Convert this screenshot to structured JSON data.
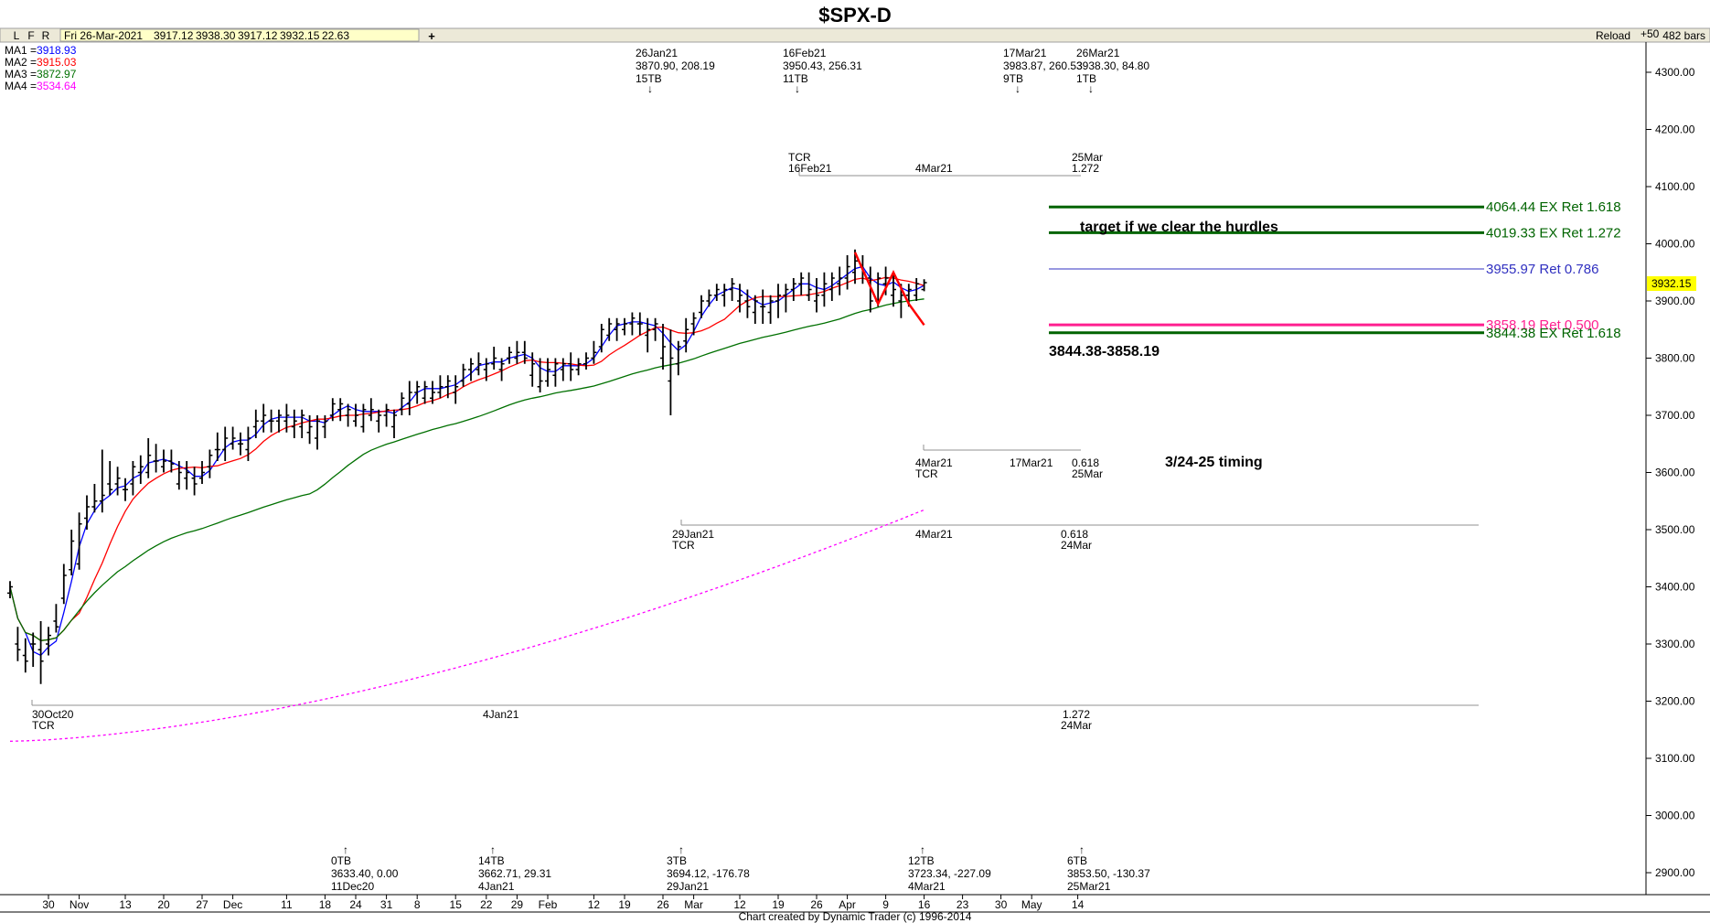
{
  "window": {
    "title": "$SPX-D",
    "toolbar_letters": [
      "L",
      "F",
      "R"
    ],
    "readout": {
      "date": "Fri 26-Mar-2021",
      "open": "3917.12",
      "high": "3938.30",
      "low": "3917.12",
      "close": "3932.15",
      "change": "22.63"
    },
    "add_button": "+",
    "reload": "Reload",
    "zoom": "+50",
    "bars": "482 bars",
    "footer": "Chart created by Dynamic Trader  (c) 1996-2014"
  },
  "colors": {
    "ma1": "#0000ff",
    "ma2": "#ff0000",
    "ma3": "#007000",
    "ma4": "#ff00ff",
    "price": "#000000",
    "target_green": "#006400",
    "pink": "#ff1f8f",
    "blue_line": "#3030c0",
    "drawn_red": "#ff0000"
  },
  "chart_data": {
    "type": "ohlc",
    "symbol": "$SPX-D",
    "y_ticks": [
      "4300.00",
      "4200.00",
      "4100.00",
      "4000.00",
      "3900.00",
      "3800.00",
      "3700.00",
      "3600.00",
      "3500.00",
      "3400.00",
      "3300.00",
      "3200.00",
      "3100.00",
      "3000.00",
      "2900.00"
    ],
    "ylim": [
      2860,
      4340
    ],
    "last_price": "3932.15",
    "x_ticks": [
      "30",
      "Nov",
      "13",
      "20",
      "27",
      "Dec",
      "11",
      "18",
      "24",
      "31",
      "8",
      "15",
      "22",
      "29",
      "Feb",
      "12",
      "19",
      "26",
      "Mar",
      "12",
      "19",
      "26",
      "Apr",
      "9",
      "16",
      "23",
      "30",
      "May",
      "14"
    ],
    "x_tick_index": [
      0,
      4,
      10,
      15,
      20,
      24,
      31,
      36,
      40,
      44,
      48,
      53,
      57,
      61,
      65,
      71,
      75,
      80,
      84,
      90,
      95,
      100,
      104,
      109,
      114,
      119,
      124,
      128,
      134
    ],
    "moving_averages": [
      {
        "name": "MA1",
        "value": "3918.93"
      },
      {
        "name": "MA2",
        "value": "3915.03"
      },
      {
        "name": "MA3",
        "value": "3872.97"
      },
      {
        "name": "MA4",
        "value": "3534.64"
      }
    ],
    "ohlc": [
      [
        0,
        3389,
        3410,
        3380,
        3400
      ],
      [
        1,
        3300,
        3330,
        3270,
        3290
      ],
      [
        2,
        3280,
        3310,
        3250,
        3270
      ],
      [
        3,
        3300,
        3320,
        3260,
        3300
      ],
      [
        4,
        3290,
        3340,
        3230,
        3270
      ],
      [
        5,
        3300,
        3330,
        3280,
        3315
      ],
      [
        6,
        3340,
        3370,
        3320,
        3330
      ],
      [
        7,
        3380,
        3440,
        3370,
        3420
      ],
      [
        8,
        3430,
        3500,
        3420,
        3480
      ],
      [
        9,
        3440,
        3530,
        3430,
        3510
      ],
      [
        10,
        3520,
        3560,
        3500,
        3540
      ],
      [
        11,
        3540,
        3580,
        3530,
        3550
      ],
      [
        12,
        3550,
        3640,
        3530,
        3560
      ],
      [
        13,
        3580,
        3620,
        3560,
        3570
      ],
      [
        14,
        3580,
        3610,
        3560,
        3590
      ],
      [
        15,
        3570,
        3590,
        3550,
        3570
      ],
      [
        16,
        3580,
        3620,
        3560,
        3610
      ],
      [
        17,
        3600,
        3630,
        3580,
        3610
      ],
      [
        18,
        3600,
        3660,
        3590,
        3630
      ],
      [
        19,
        3620,
        3650,
        3600,
        3620
      ],
      [
        20,
        3610,
        3640,
        3600,
        3620
      ],
      [
        21,
        3620,
        3640,
        3600,
        3615
      ],
      [
        22,
        3580,
        3620,
        3570,
        3600
      ],
      [
        23,
        3590,
        3620,
        3570,
        3600
      ],
      [
        24,
        3590,
        3610,
        3560,
        3580
      ],
      [
        25,
        3590,
        3620,
        3580,
        3600
      ],
      [
        26,
        3610,
        3640,
        3590,
        3630
      ],
      [
        27,
        3640,
        3670,
        3620,
        3640
      ],
      [
        28,
        3640,
        3680,
        3620,
        3660
      ],
      [
        29,
        3650,
        3680,
        3640,
        3660
      ],
      [
        30,
        3650,
        3670,
        3630,
        3650
      ],
      [
        31,
        3640,
        3680,
        3620,
        3660
      ],
      [
        32,
        3680,
        3710,
        3660,
        3690
      ],
      [
        33,
        3690,
        3720,
        3670,
        3700
      ],
      [
        34,
        3690,
        3710,
        3670,
        3690
      ],
      [
        35,
        3690,
        3710,
        3670,
        3700
      ],
      [
        36,
        3690,
        3720,
        3670,
        3700
      ],
      [
        37,
        3680,
        3710,
        3660,
        3690
      ],
      [
        38,
        3680,
        3710,
        3660,
        3700
      ],
      [
        39,
        3670,
        3700,
        3650,
        3680
      ],
      [
        40,
        3660,
        3700,
        3640,
        3690
      ],
      [
        41,
        3680,
        3700,
        3660,
        3690
      ],
      [
        42,
        3700,
        3730,
        3690,
        3720
      ],
      [
        43,
        3710,
        3730,
        3690,
        3720
      ],
      [
        44,
        3700,
        3720,
        3680,
        3710
      ],
      [
        45,
        3690,
        3720,
        3680,
        3700
      ],
      [
        46,
        3680,
        3720,
        3670,
        3710
      ],
      [
        47,
        3700,
        3730,
        3690,
        3710
      ],
      [
        48,
        3690,
        3710,
        3670,
        3700
      ],
      [
        49,
        3700,
        3720,
        3680,
        3710
      ],
      [
        50,
        3680,
        3710,
        3660,
        3700
      ],
      [
        51,
        3710,
        3740,
        3700,
        3730
      ],
      [
        52,
        3720,
        3760,
        3700,
        3740
      ],
      [
        53,
        3740,
        3760,
        3720,
        3750
      ],
      [
        54,
        3730,
        3760,
        3720,
        3750
      ],
      [
        55,
        3730,
        3760,
        3720,
        3740
      ],
      [
        56,
        3740,
        3770,
        3730,
        3750
      ],
      [
        57,
        3750,
        3770,
        3730,
        3760
      ],
      [
        58,
        3740,
        3770,
        3720,
        3750
      ],
      [
        59,
        3760,
        3790,
        3750,
        3780
      ],
      [
        60,
        3780,
        3800,
        3760,
        3790
      ],
      [
        61,
        3780,
        3810,
        3770,
        3790
      ],
      [
        62,
        3780,
        3800,
        3760,
        3790
      ],
      [
        63,
        3790,
        3820,
        3780,
        3800
      ],
      [
        64,
        3780,
        3800,
        3760,
        3790
      ],
      [
        65,
        3800,
        3820,
        3790,
        3810
      ],
      [
        66,
        3800,
        3830,
        3790,
        3810
      ],
      [
        67,
        3810,
        3830,
        3790,
        3800
      ],
      [
        68,
        3770,
        3810,
        3750,
        3790
      ],
      [
        69,
        3750,
        3800,
        3740,
        3760
      ],
      [
        70,
        3760,
        3800,
        3750,
        3780
      ],
      [
        71,
        3770,
        3800,
        3750,
        3790
      ],
      [
        72,
        3780,
        3800,
        3760,
        3790
      ],
      [
        73,
        3790,
        3810,
        3760,
        3780
      ],
      [
        74,
        3780,
        3800,
        3770,
        3790
      ],
      [
        75,
        3790,
        3810,
        3780,
        3800
      ],
      [
        76,
        3800,
        3830,
        3790,
        3810
      ],
      [
        77,
        3820,
        3860,
        3810,
        3850
      ],
      [
        78,
        3840,
        3870,
        3830,
        3860
      ],
      [
        79,
        3850,
        3870,
        3830,
        3860
      ],
      [
        80,
        3850,
        3870,
        3840,
        3860
      ],
      [
        81,
        3860,
        3880,
        3840,
        3870
      ],
      [
        82,
        3860,
        3880,
        3840,
        3860
      ],
      [
        83,
        3840,
        3870,
        3810,
        3850
      ],
      [
        84,
        3850,
        3870,
        3830,
        3860
      ],
      [
        85,
        3800,
        3860,
        3780,
        3820
      ],
      [
        86,
        3760,
        3850,
        3700,
        3800
      ],
      [
        87,
        3790,
        3830,
        3770,
        3820
      ],
      [
        88,
        3830,
        3870,
        3810,
        3850
      ],
      [
        89,
        3860,
        3880,
        3840,
        3870
      ],
      [
        90,
        3880,
        3910,
        3870,
        3900
      ],
      [
        91,
        3900,
        3920,
        3890,
        3910
      ],
      [
        92,
        3910,
        3930,
        3900,
        3920
      ],
      [
        93,
        3910,
        3930,
        3890,
        3920
      ],
      [
        94,
        3920,
        3940,
        3900,
        3930
      ],
      [
        95,
        3900,
        3930,
        3880,
        3910
      ],
      [
        96,
        3900,
        3920,
        3870,
        3890
      ],
      [
        97,
        3880,
        3910,
        3860,
        3900
      ],
      [
        98,
        3890,
        3920,
        3860,
        3890
      ],
      [
        99,
        3880,
        3910,
        3860,
        3900
      ],
      [
        100,
        3900,
        3930,
        3870,
        3910
      ],
      [
        101,
        3910,
        3930,
        3880,
        3920
      ],
      [
        102,
        3920,
        3940,
        3900,
        3930
      ],
      [
        103,
        3930,
        3950,
        3910,
        3940
      ],
      [
        104,
        3910,
        3950,
        3900,
        3920
      ],
      [
        105,
        3900,
        3940,
        3880,
        3910
      ],
      [
        106,
        3910,
        3950,
        3890,
        3930
      ],
      [
        107,
        3920,
        3950,
        3900,
        3940
      ],
      [
        108,
        3930,
        3960,
        3910,
        3940
      ],
      [
        109,
        3940,
        3980,
        3920,
        3960
      ],
      [
        110,
        3950,
        3990,
        3930,
        3970
      ],
      [
        111,
        3960,
        3980,
        3930,
        3950
      ],
      [
        112,
        3940,
        3960,
        3880,
        3900
      ],
      [
        113,
        3900,
        3950,
        3890,
        3940
      ],
      [
        114,
        3930,
        3960,
        3910,
        3940
      ],
      [
        115,
        3910,
        3950,
        3890,
        3920
      ],
      [
        116,
        3900,
        3930,
        3870,
        3910
      ],
      [
        117,
        3910,
        3930,
        3890,
        3920
      ],
      [
        118,
        3910,
        3940,
        3900,
        3930
      ],
      [
        119,
        3920,
        3938,
        3917,
        3932
      ]
    ],
    "levels": [
      {
        "label": "4064.44 EX Ret 1.618",
        "value": 4064.44,
        "color": "#006400",
        "weight": 3
      },
      {
        "label": "4019.33 EX Ret 1.272",
        "value": 4019.33,
        "color": "#006400",
        "weight": 3
      },
      {
        "label": "3955.97 Ret 0.786",
        "value": 3955.97,
        "color": "#3030c0",
        "weight": 1
      },
      {
        "label": "3858.19 Ret 0.500",
        "value": 3858.19,
        "color": "#ff1f8f",
        "weight": 3
      },
      {
        "label": "3844.38 EX Ret 1.618",
        "value": 3844.38,
        "color": "#006400",
        "weight": 3
      }
    ],
    "annotations": {
      "target": "target if we clear the hurdles",
      "zone": "3844.38-3858.19",
      "timing": "3/24-25 timing"
    },
    "top_pivots": [
      {
        "lines": [
          "26Jan21",
          "3870.90, 208.19",
          "15TB"
        ]
      },
      {
        "lines": [
          "16Feb21",
          "3950.43, 256.31",
          "11TB"
        ]
      },
      {
        "lines": [
          "17Mar21",
          "3983.87, 260.53",
          "9TB"
        ]
      },
      {
        "lines": [
          "26Mar21",
          "3938.30, 84.80",
          "1TB"
        ]
      }
    ],
    "bottom_pivots": [
      {
        "lines": [
          "0TB",
          "3633.40, 0.00",
          "11Dec20"
        ]
      },
      {
        "lines": [
          "14TB",
          "3662.71, 29.31",
          "4Jan21"
        ]
      },
      {
        "lines": [
          "3TB",
          "3694.12, -176.78",
          "29Jan21"
        ]
      },
      {
        "lines": [
          "12TB",
          "3723.34, -227.09",
          "4Mar21"
        ]
      },
      {
        "lines": [
          "6TB",
          "3853.50, -130.37",
          "25Mar21"
        ]
      }
    ],
    "time_projections": {
      "tcr_top": {
        "left": [
          "TCR",
          "16Feb21"
        ],
        "mid": "4Mar21",
        "right": [
          "25Mar",
          "1.272"
        ]
      },
      "mid": {
        "left": [
          "4Mar21",
          "TCR"
        ],
        "mid": "17Mar21",
        "right": [
          "0.618",
          "25Mar"
        ]
      },
      "lower": {
        "left": [
          "29Jan21",
          "TCR"
        ],
        "mid": "4Mar21",
        "right": [
          "0.618",
          "24Mar"
        ]
      },
      "bottom": {
        "left": [
          "30Oct20",
          "TCR"
        ],
        "mid": "4Jan21",
        "right": [
          "1.272",
          "24Mar"
        ]
      }
    }
  }
}
